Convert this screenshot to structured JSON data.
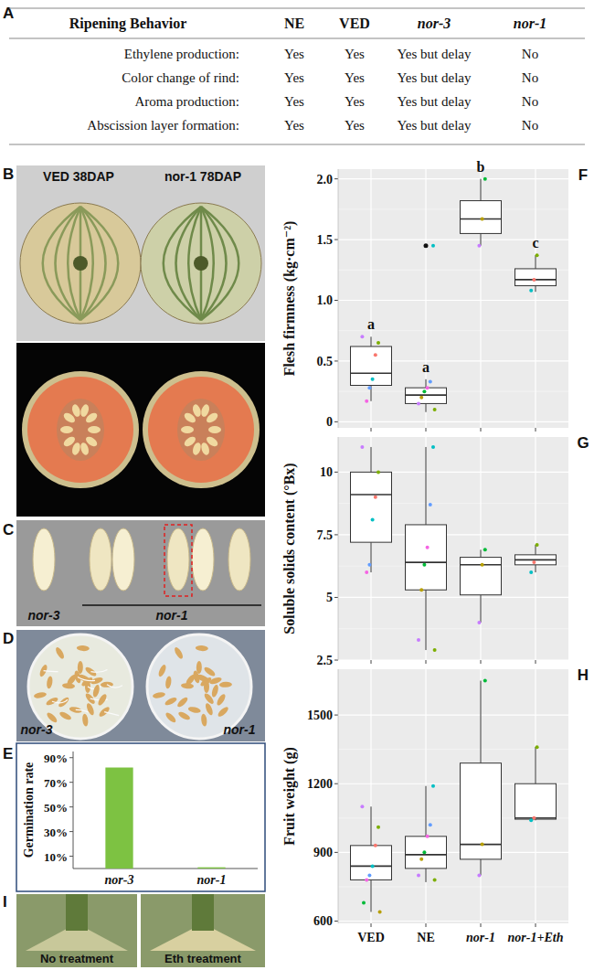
{
  "table": {
    "label": "A",
    "header": [
      "Ripening Behavior",
      "NE",
      "VED",
      "nor-3",
      "nor-1"
    ],
    "rows": [
      [
        "Ethylene production:",
        "Yes",
        "Yes",
        "Yes but delay",
        "No"
      ],
      [
        "Color change of rind:",
        "Yes",
        "Yes",
        "Yes but delay",
        "No"
      ],
      [
        "Aroma production:",
        "Yes",
        "Yes",
        "Yes but delay",
        "No"
      ],
      [
        "Abscission layer formation:",
        "Yes",
        "Yes",
        "Yes but delay",
        "No"
      ]
    ]
  },
  "photos": [
    {
      "label": "B",
      "captions": [
        "VED 38DAP",
        "nor-1 78DAP"
      ]
    },
    {
      "label": "C",
      "captions": [
        "nor-3",
        "nor-1"
      ]
    },
    {
      "label": "D",
      "captions": [
        "nor-3",
        "nor-1"
      ]
    },
    {
      "label": "I",
      "captions": [
        "No treatment",
        "Eth treatment"
      ]
    }
  ],
  "chart_data": [
    {
      "type": "bar",
      "label": "E",
      "ylabel": "Germination rate",
      "categories": [
        "nor-3",
        "nor-1"
      ],
      "values": [
        82,
        1
      ],
      "color": "#7dc242",
      "ylim": [
        0,
        95
      ],
      "yticks": [
        {
          "value": 10,
          "label": "10%"
        },
        {
          "value": 30,
          "label": "30%"
        },
        {
          "value": 50,
          "label": "50%"
        },
        {
          "value": 70,
          "label": "70%"
        },
        {
          "value": 90,
          "label": "90%"
        }
      ],
      "grid": false
    },
    {
      "type": "box",
      "label": "F",
      "ylabel": "Flesh firmness (kg·cm⁻²)",
      "categories": [
        null,
        null,
        null,
        null
      ],
      "ylim": [
        -0.05,
        2.08
      ],
      "yticks": [
        0,
        0.5,
        {
          "value": 1,
          "label": "1.0"
        },
        1.5,
        {
          "value": 2,
          "label": "2.0"
        }
      ],
      "grid": true,
      "boxes": [
        {
          "min": 0.17,
          "q1": 0.3,
          "median": 0.4,
          "q3": 0.62,
          "max": 0.7
        },
        {
          "min": 0.08,
          "q1": 0.15,
          "median": 0.22,
          "q3": 0.28,
          "max": 0.35
        },
        {
          "min": 1.45,
          "q1": 1.55,
          "median": 1.67,
          "q3": 1.82,
          "max": 2.0
        },
        {
          "min": 1.07,
          "q1": 1.12,
          "median": 1.17,
          "q3": 1.26,
          "max": 1.37
        }
      ],
      "points": [
        [
          0.7,
          0.65,
          0.55,
          0.35,
          0.28,
          0.17
        ],
        [
          1.45,
          0.33,
          0.28,
          0.25,
          0.2,
          0.15,
          0.1
        ],
        [
          2.0,
          1.67,
          1.45
        ],
        [
          1.37,
          1.17,
          1.08
        ]
      ],
      "outliers": [
        [],
        [
          1.45
        ],
        [],
        []
      ],
      "letters": [
        "a",
        "a",
        "b",
        "c"
      ]
    },
    {
      "type": "box",
      "label": "G",
      "ylabel": "Soluble solids content (°Bx)",
      "categories": [
        null,
        null,
        null,
        null
      ],
      "ylim": [
        2.5,
        11.4
      ],
      "yticks": [
        2.5,
        5,
        7.5,
        10
      ],
      "grid": true,
      "boxes": [
        {
          "min": 6.0,
          "q1": 7.2,
          "median": 9.1,
          "q3": 10.0,
          "max": 11.0
        },
        {
          "min": 2.9,
          "q1": 5.3,
          "median": 6.4,
          "q3": 7.9,
          "max": 11.0
        },
        {
          "min": 4.0,
          "q1": 5.1,
          "median": 6.3,
          "q3": 6.6,
          "max": 6.9
        },
        {
          "min": 6.0,
          "q1": 6.3,
          "median": 6.5,
          "q3": 6.7,
          "max": 7.1
        }
      ],
      "points": [
        [
          11.0,
          10.0,
          9.0,
          8.1,
          6.3,
          6.0
        ],
        [
          11.0,
          8.7,
          7.0,
          6.3,
          5.3,
          3.3,
          2.9
        ],
        [
          6.9,
          6.3,
          4.0
        ],
        [
          7.1,
          6.4,
          6.0
        ]
      ],
      "outliers": [
        [],
        [],
        [],
        []
      ]
    },
    {
      "type": "box",
      "label": "H",
      "ylabel": "Fruit weight (g)",
      "categories": [
        "VED",
        "NE",
        "nor-1",
        "nor-1+Eth"
      ],
      "ylim": [
        590,
        1700
      ],
      "yticks": [
        600,
        900,
        1200,
        1500
      ],
      "grid": true,
      "boxes": [
        {
          "min": 640,
          "q1": 780,
          "median": 840,
          "q3": 930,
          "max": 1100
        },
        {
          "min": 770,
          "q1": 830,
          "median": 890,
          "q3": 970,
          "max": 1190
        },
        {
          "min": 800,
          "q1": 870,
          "median": 935,
          "q3": 1290,
          "max": 1650
        },
        {
          "min": 1040,
          "q1": 1045,
          "median": 1050,
          "q3": 1200,
          "max": 1360
        }
      ],
      "points": [
        [
          1100,
          1010,
          930,
          840,
          800,
          780,
          680,
          640
        ],
        [
          1190,
          1020,
          970,
          900,
          870,
          800,
          780
        ],
        [
          1650,
          935,
          800
        ],
        [
          1360,
          1050,
          1040
        ]
      ],
      "outliers": [
        [],
        [],
        [],
        []
      ]
    }
  ]
}
